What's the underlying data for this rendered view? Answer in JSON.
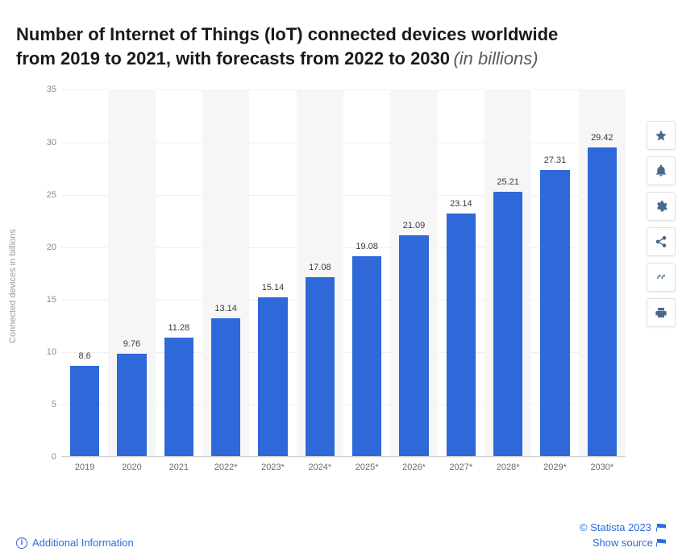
{
  "title": {
    "main": "Number of Internet of Things (IoT) connected devices worldwide from 2019 to 2021, with forecasts from 2022 to 2030",
    "suffix": "(in billions)",
    "fontsize": 22,
    "fontweight": 700,
    "color": "#1a1a1a",
    "suffix_color": "#5a5a5a"
  },
  "chart": {
    "type": "bar",
    "y_axis_label": "Connected devices in billions",
    "categories": [
      "2019",
      "2020",
      "2021",
      "2022*",
      "2023*",
      "2024*",
      "2025*",
      "2026*",
      "2027*",
      "2028*",
      "2029*",
      "2030*"
    ],
    "values": [
      8.6,
      9.76,
      11.28,
      13.14,
      15.14,
      17.08,
      19.08,
      21.09,
      23.14,
      25.21,
      27.31,
      29.42
    ],
    "value_labels": [
      "8.6",
      "9.76",
      "11.28",
      "13.14",
      "15.14",
      "17.08",
      "19.08",
      "21.09",
      "23.14",
      "25.21",
      "27.31",
      "29.42"
    ],
    "bar_color": "#2e68d9",
    "ylim": [
      0,
      35
    ],
    "ytick_step": 5,
    "yticks": [
      0,
      5,
      10,
      15,
      20,
      25,
      30,
      35
    ],
    "bar_width_ratio": 0.62,
    "background_color": "#ffffff",
    "grid_color": "#f0f0f0",
    "band_color": "#f6f6f6",
    "axis_font_color": "#8a8a8a",
    "label_font_color": "#3a3a3a",
    "label_fontsize": 11,
    "tick_fontsize": 11
  },
  "side_actions": [
    {
      "name": "star-icon",
      "label": "Favorite"
    },
    {
      "name": "bell-icon",
      "label": "Alert"
    },
    {
      "name": "gear-icon",
      "label": "Settings"
    },
    {
      "name": "share-icon",
      "label": "Share"
    },
    {
      "name": "quote-icon",
      "label": "Cite"
    },
    {
      "name": "print-icon",
      "label": "Print"
    }
  ],
  "footer": {
    "additional_info": "Additional Information",
    "copyright": "© Statista 2023",
    "show_source": "Show source",
    "link_color": "#2d6cdf"
  }
}
